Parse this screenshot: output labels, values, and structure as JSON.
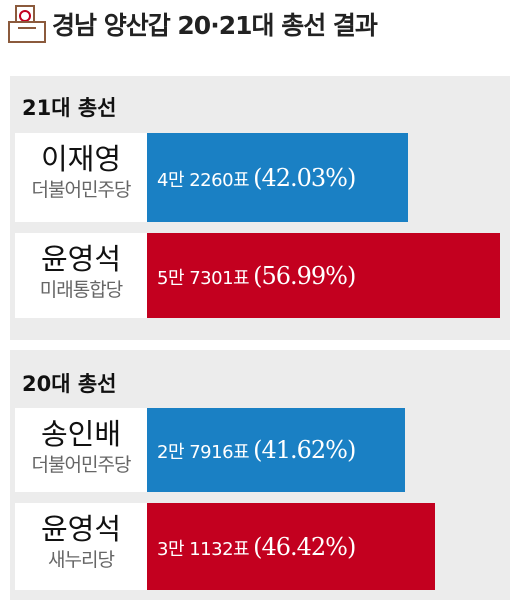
{
  "header": {
    "title": "경남 양산갑 20·21대 총선 결과"
  },
  "chart_data": [
    {
      "type": "bar",
      "title": "21대 총선",
      "categories": [
        "이재영",
        "윤영석"
      ],
      "parties": [
        "더불어민주당",
        "미래통합당"
      ],
      "votes": [
        42260,
        57301
      ],
      "vote_labels": [
        "4만 2260표",
        "5만 7301표"
      ],
      "values": [
        42.03,
        56.99
      ],
      "value_labels": [
        "(42.03%)",
        "(56.99%)"
      ],
      "colors": [
        "#1a80c4",
        "#c3001f"
      ]
    },
    {
      "type": "bar",
      "title": "20대 총선",
      "categories": [
        "송인배",
        "윤영석"
      ],
      "parties": [
        "더불어민주당",
        "새누리당"
      ],
      "votes": [
        27916,
        31132
      ],
      "vote_labels": [
        "2만 7916표",
        "3만 1132표"
      ],
      "values": [
        41.62,
        46.42
      ],
      "value_labels": [
        "(41.62%)",
        "(46.42%)"
      ],
      "colors": [
        "#1a80c4",
        "#c3001f"
      ]
    }
  ]
}
